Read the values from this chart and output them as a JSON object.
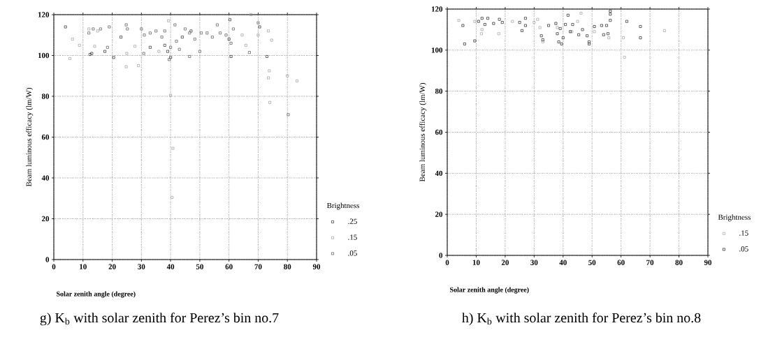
{
  "chart_data": [
    {
      "type": "scatter",
      "title": "g) K$_{b}$ with solar zenith for Perez’s bin no.7",
      "xlabel": "Solar zenith angle (degree)",
      "ylabel": "Beam luminous efficacy (lm/W)",
      "legend_title": "Brightness",
      "xlim": [
        0,
        90
      ],
      "ylim": [
        0,
        120
      ],
      "xticks": [
        0,
        10,
        20,
        30,
        40,
        50,
        60,
        70,
        80,
        90
      ],
      "yticks": [
        0,
        20,
        40,
        60,
        80,
        100,
        120
      ],
      "grid": true,
      "legend": "right",
      "marker": "square",
      "series": [
        {
          "name": ".25",
          "color": "#2a2a2a",
          "x": [
            4,
            12.4,
            17.5,
            23,
            33,
            60.3,
            60.7,
            70.5,
            73,
            39,
            40,
            38,
            44,
            47,
            60,
            20.5,
            13
          ],
          "values": [
            114,
            100.5,
            102,
            109,
            104,
            117.5,
            99.5,
            114,
            99.5,
            102,
            99,
            105,
            109,
            112,
            108,
            99,
            101
          ]
        },
        {
          "name": ".15",
          "color": "#9a9aae",
          "x": [
            5.5,
            6.4,
            8.8,
            14,
            24.8,
            27.8,
            29,
            39.3,
            40,
            40.8,
            40.5,
            64.5,
            65.8,
            73.5,
            74.6,
            73.8,
            73.5,
            74,
            80,
            83.3,
            12,
            15,
            25,
            67.5,
            70,
            36
          ],
          "values": [
            98.5,
            108,
            105,
            104.5,
            94.5,
            104.5,
            95,
            117,
            80.5,
            54.5,
            30.5,
            110,
            105,
            112,
            107.5,
            92.5,
            89,
            77,
            90,
            87.5,
            113,
            112,
            101,
            120,
            110,
            102
          ]
        },
        {
          "name": ".05",
          "color": "#555555",
          "x": [
            12,
            13.5,
            16,
            18.4,
            19,
            24.8,
            25.2,
            30,
            30.8,
            31,
            33,
            35,
            37,
            38,
            40,
            41.5,
            43,
            45,
            46.5,
            46.5,
            48.3,
            50,
            50.5,
            52.5,
            54.3,
            56,
            57,
            59,
            60.7,
            61.5,
            67,
            70,
            80.3,
            39.5,
            42
          ],
          "values": [
            111,
            113,
            113,
            104,
            114,
            115,
            113,
            113,
            101,
            110,
            111,
            112,
            109,
            112,
            104,
            115,
            103,
            113,
            111,
            99.5,
            108,
            102,
            111,
            111,
            109,
            115,
            111,
            110,
            106,
            113,
            101.5,
            116,
            71,
            98,
            107
          ]
        }
      ]
    },
    {
      "type": "scatter",
      "title": "h) K$_{b}$ with solar zenith for Perez’s bin no.8",
      "xlabel": "Solar zenith angle (degree)",
      "ylabel": "Beam luminous efficacy (lm/W)",
      "legend_title": "Brightness",
      "xlim": [
        0,
        90
      ],
      "ylim": [
        0,
        120
      ],
      "xticks": [
        0,
        10,
        20,
        30,
        40,
        50,
        60,
        70,
        80,
        90
      ],
      "yticks": [
        0,
        20,
        40,
        60,
        80,
        100,
        120
      ],
      "grid": true,
      "legend": "right",
      "marker": "square",
      "series": [
        {
          "name": ".15",
          "color": "#a0a0a8",
          "x": [
            4,
            9.5,
            11.8,
            12,
            17.8,
            22.5,
            30,
            31.2,
            32,
            33,
            46.2,
            45,
            55.8,
            60.8,
            61.2,
            75,
            50.8,
            38,
            43
          ],
          "values": [
            114.5,
            114,
            108,
            110,
            108,
            114,
            113.5,
            115,
            111,
            104,
            118,
            114,
            106,
            106,
            96.5,
            109.5,
            109,
            111,
            109
          ]
        },
        {
          "name": ".05",
          "color": "#222222",
          "x": [
            5.4,
            6,
            9.5,
            10.8,
            12,
            14,
            13,
            16,
            18,
            19,
            25,
            25.8,
            27,
            27,
            32.5,
            33,
            35,
            37.5,
            38,
            38.5,
            39,
            39.5,
            40,
            40.8,
            41.7,
            42.5,
            43.3,
            45.4,
            46.7,
            48.3,
            49,
            49,
            50.8,
            53.3,
            54,
            55,
            55.5,
            56.3,
            56.3,
            56.3,
            62,
            66.7,
            66.7
          ],
          "values": [
            112,
            103,
            104.5,
            114,
            115.5,
            115.5,
            112.5,
            113,
            115,
            113.5,
            113.5,
            109.5,
            115.5,
            112,
            107,
            105,
            112,
            113,
            108,
            104,
            110.5,
            103,
            106,
            112.5,
            117,
            109,
            112.5,
            107.5,
            110,
            107,
            104,
            103,
            111.5,
            112,
            107.5,
            112,
            108,
            119,
            117.5,
            114.5,
            114,
            111.5,
            106
          ]
        }
      ]
    }
  ]
}
